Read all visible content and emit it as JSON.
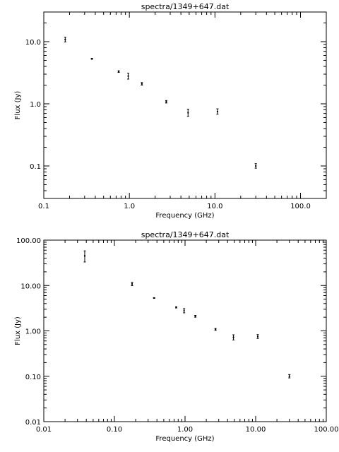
{
  "chart_data": [
    {
      "type": "scatter",
      "title": "spectra/1349+647.dat",
      "xlabel": "Frequency (GHz)",
      "ylabel": "Flux (Jy)",
      "xscale": "log",
      "yscale": "log",
      "xlim": [
        0.1,
        200
      ],
      "ylim": [
        0.03,
        30
      ],
      "xticks": [
        0.1,
        1.0,
        10.0,
        100.0
      ],
      "xtick_labels": [
        "0.1",
        "1.0",
        "10.0",
        "100.0"
      ],
      "yticks": [
        0.1,
        1.0,
        10.0
      ],
      "ytick_labels": [
        "0.1",
        "1.0",
        "10.0"
      ],
      "points": [
        {
          "x": 0.178,
          "y": 10.8,
          "ylo": 9.9,
          "yhi": 11.8
        },
        {
          "x": 0.365,
          "y": 5.3,
          "ylo": 5.2,
          "yhi": 5.4
        },
        {
          "x": 0.75,
          "y": 3.3,
          "ylo": 3.2,
          "yhi": 3.4
        },
        {
          "x": 0.97,
          "y": 2.8,
          "ylo": 2.5,
          "yhi": 3.1
        },
        {
          "x": 1.4,
          "y": 2.1,
          "ylo": 2.0,
          "yhi": 2.2
        },
        {
          "x": 2.7,
          "y": 1.08,
          "ylo": 1.03,
          "yhi": 1.13
        },
        {
          "x": 4.85,
          "y": 0.72,
          "ylo": 0.63,
          "yhi": 0.82
        },
        {
          "x": 10.7,
          "y": 0.75,
          "ylo": 0.68,
          "yhi": 0.83
        },
        {
          "x": 30.0,
          "y": 0.1,
          "ylo": 0.092,
          "yhi": 0.109
        }
      ]
    },
    {
      "type": "scatter",
      "title": "spectra/1349+647.dat",
      "xlabel": "Frequency (GHz)",
      "ylabel": "Flux (Jy)",
      "xscale": "log",
      "yscale": "log",
      "xlim": [
        0.01,
        100
      ],
      "ylim": [
        0.01,
        100
      ],
      "xticks": [
        0.01,
        0.1,
        1.0,
        10.0,
        100.0
      ],
      "xtick_labels": [
        "0.01",
        "0.10",
        "1.00",
        "10.00",
        "100.00"
      ],
      "yticks": [
        0.01,
        0.1,
        1.0,
        10.0,
        100.0
      ],
      "ytick_labels": [
        "0.01",
        "0.10",
        "1.00",
        "10.00",
        "100.00"
      ],
      "points": [
        {
          "x": 0.038,
          "y": 45,
          "ylo": 33,
          "yhi": 58
        },
        {
          "x": 0.178,
          "y": 10.8,
          "ylo": 9.9,
          "yhi": 11.8
        },
        {
          "x": 0.365,
          "y": 5.3,
          "ylo": 5.2,
          "yhi": 5.4
        },
        {
          "x": 0.75,
          "y": 3.3,
          "ylo": 3.2,
          "yhi": 3.4
        },
        {
          "x": 0.97,
          "y": 2.8,
          "ylo": 2.5,
          "yhi": 3.1
        },
        {
          "x": 1.4,
          "y": 2.1,
          "ylo": 2.0,
          "yhi": 2.2
        },
        {
          "x": 2.7,
          "y": 1.08,
          "ylo": 1.03,
          "yhi": 1.13
        },
        {
          "x": 4.85,
          "y": 0.72,
          "ylo": 0.63,
          "yhi": 0.82
        },
        {
          "x": 10.7,
          "y": 0.75,
          "ylo": 0.68,
          "yhi": 0.83
        },
        {
          "x": 30.0,
          "y": 0.1,
          "ylo": 0.092,
          "yhi": 0.109
        }
      ]
    }
  ]
}
